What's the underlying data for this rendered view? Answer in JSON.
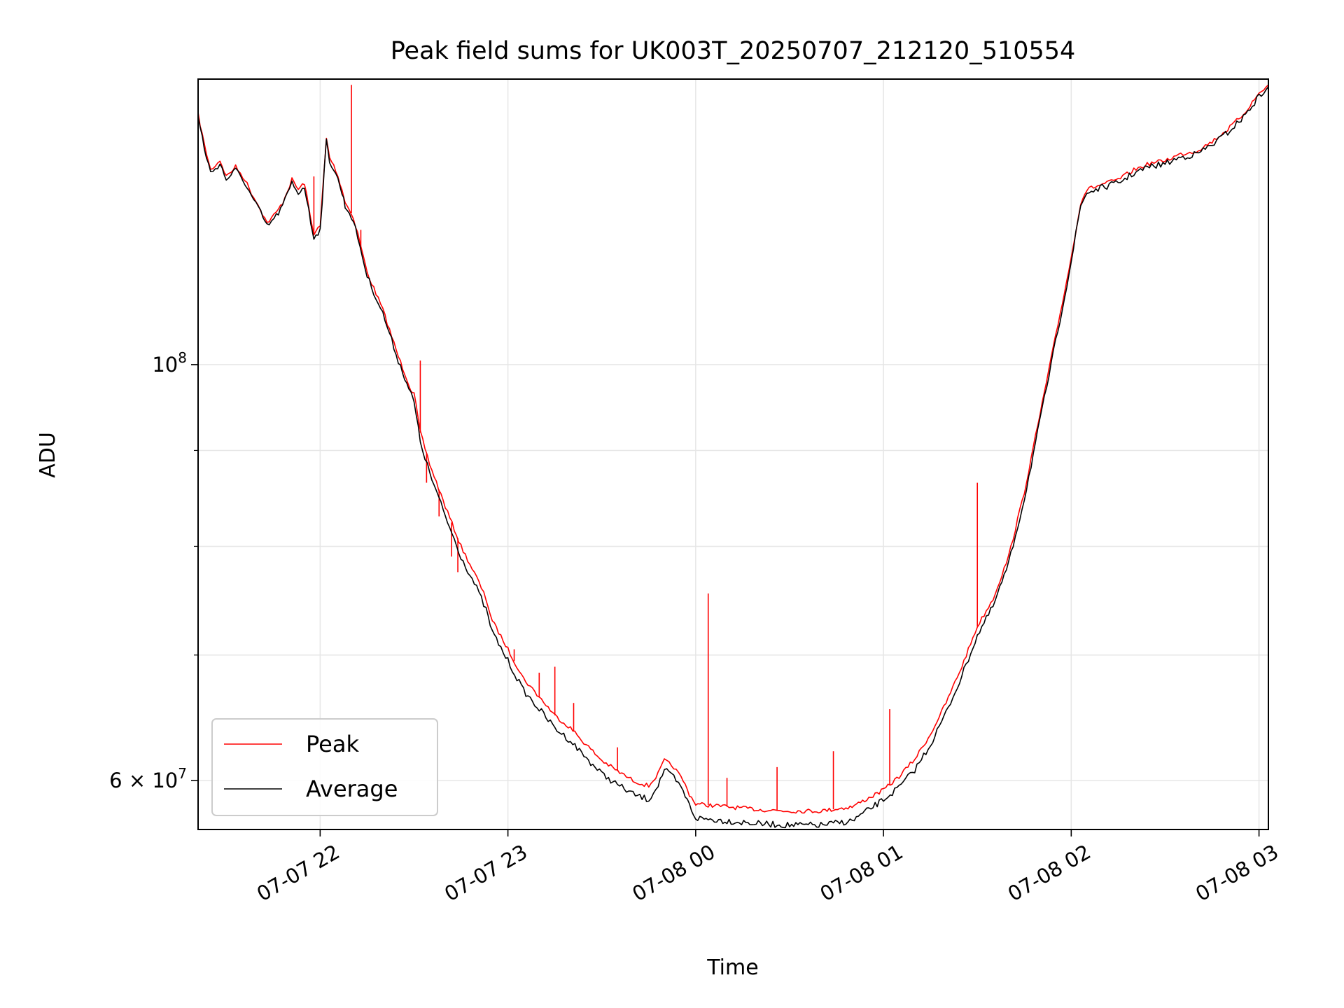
{
  "chart_data": {
    "type": "line",
    "title": "Peak field sums for UK003T_20250707_212120_510554",
    "xlabel": "Time",
    "ylabel": "ADU",
    "y_scale": "log",
    "grid": true,
    "legend_position": "lower-left",
    "xlim": [
      "2025-07-07T21:21",
      "2025-07-08T03:03"
    ],
    "ylim": [
      56500000,
      142000000
    ],
    "x_ticks": [
      {
        "value": "2025-07-07T22:00",
        "label": "07-07 22"
      },
      {
        "value": "2025-07-07T23:00",
        "label": "07-07 23"
      },
      {
        "value": "2025-07-08T00:00",
        "label": "07-08 00"
      },
      {
        "value": "2025-07-08T01:00",
        "label": "07-08 01"
      },
      {
        "value": "2025-07-08T02:00",
        "label": "07-08 02"
      },
      {
        "value": "2025-07-08T03:00",
        "label": "07-08 03"
      }
    ],
    "y_major_ticks": [
      {
        "value": 60000000,
        "base": "6",
        "times": "×",
        "pow": "10",
        "exp": "7"
      },
      {
        "value": 100000000,
        "base": "",
        "times": "",
        "pow": "10",
        "exp": "8"
      }
    ],
    "y_minor_ticks": [
      70000000,
      80000000,
      90000000
    ],
    "series": [
      {
        "name": "Peak",
        "color": "#ff0000",
        "x": [
          "2025-07-07T21:21",
          "2025-07-07T21:23",
          "2025-07-07T21:25",
          "2025-07-07T21:28",
          "2025-07-07T21:30",
          "2025-07-07T21:33",
          "2025-07-07T21:36",
          "2025-07-07T21:38",
          "2025-07-07T21:41",
          "2025-07-07T21:43",
          "2025-07-07T21:46",
          "2025-07-07T21:48",
          "2025-07-07T21:51",
          "2025-07-07T21:53",
          "2025-07-07T21:55",
          "2025-07-07T21:57",
          "2025-07-07T21:58",
          "2025-07-07T22:00",
          "2025-07-07T22:02",
          "2025-07-07T22:03",
          "2025-07-07T22:05",
          "2025-07-07T22:07",
          "2025-07-07T22:08",
          "2025-07-07T22:10",
          "2025-07-07T22:12",
          "2025-07-07T22:15",
          "2025-07-07T22:20",
          "2025-07-07T22:25",
          "2025-07-07T22:29",
          "2025-07-07T22:30",
          "2025-07-07T22:32",
          "2025-07-07T22:35",
          "2025-07-07T22:40",
          "2025-07-07T22:45",
          "2025-07-07T22:50",
          "2025-07-07T22:53",
          "2025-07-07T22:55",
          "2025-07-07T22:57",
          "2025-07-07T23:00",
          "2025-07-07T23:05",
          "2025-07-07T23:10",
          "2025-07-07T23:15",
          "2025-07-07T23:20",
          "2025-07-07T23:25",
          "2025-07-07T23:30",
          "2025-07-07T23:35",
          "2025-07-07T23:40",
          "2025-07-07T23:45",
          "2025-07-07T23:48",
          "2025-07-07T23:50",
          "2025-07-07T23:53",
          "2025-07-07T23:56",
          "2025-07-07T23:58",
          "2025-07-08T00:00",
          "2025-07-08T00:10",
          "2025-07-08T00:20",
          "2025-07-08T00:30",
          "2025-07-08T00:40",
          "2025-07-08T00:50",
          "2025-07-08T01:00",
          "2025-07-08T01:05",
          "2025-07-08T01:10",
          "2025-07-08T01:15",
          "2025-07-08T01:20",
          "2025-07-08T01:25",
          "2025-07-08T01:30",
          "2025-07-08T01:35",
          "2025-07-08T01:40",
          "2025-07-08T01:45",
          "2025-07-08T01:50",
          "2025-07-08T01:55",
          "2025-07-08T02:00",
          "2025-07-08T02:03",
          "2025-07-08T02:05",
          "2025-07-08T02:10",
          "2025-07-08T02:15",
          "2025-07-08T02:20",
          "2025-07-08T02:25",
          "2025-07-08T02:30",
          "2025-07-08T02:35",
          "2025-07-08T02:40",
          "2025-07-08T02:45",
          "2025-07-08T02:50",
          "2025-07-08T02:55",
          "2025-07-08T03:00",
          "2025-07-08T03:03"
        ],
        "y": [
          136000000,
          131000000,
          127000000,
          128500000,
          126000000,
          127500000,
          125500000,
          123500000,
          121000000,
          119000000,
          120500000,
          122000000,
          125500000,
          124000000,
          125000000,
          119500000,
          117500000,
          118500000,
          132000000,
          129000000,
          127000000,
          124000000,
          122000000,
          120500000,
          117500000,
          112000000,
          107000000,
          101000000,
          97000000,
          96500000,
          92000000,
          88500000,
          84000000,
          80000000,
          77000000,
          75000000,
          73000000,
          72000000,
          70500000,
          68000000,
          66500000,
          65000000,
          64000000,
          62700000,
          61500000,
          60700000,
          60000000,
          59600000,
          60500000,
          61500000,
          61000000,
          60000000,
          59000000,
          58300000,
          58100000,
          57900000,
          57800000,
          57800000,
          58100000,
          59300000,
          60300000,
          61600000,
          63500000,
          66000000,
          69000000,
          72500000,
          75000000,
          79000000,
          85500000,
          94000000,
          103500000,
          114000000,
          122000000,
          124000000,
          124800000,
          125500000,
          127000000,
          128000000,
          128500000,
          129500000,
          130000000,
          131500000,
          133500000,
          136000000,
          139500000,
          141000000
        ],
        "spikes": [
          {
            "x": "2025-07-07T21:58",
            "y": 126000000
          },
          {
            "x": "2025-07-07T22:10",
            "y": 141000000
          },
          {
            "x": "2025-07-07T22:13",
            "y": 118000000
          },
          {
            "x": "2025-07-07T22:32",
            "y": 100500000
          },
          {
            "x": "2025-07-07T22:34",
            "y": 86500000
          },
          {
            "x": "2025-07-07T22:38",
            "y": 83000000
          },
          {
            "x": "2025-07-07T22:42",
            "y": 79000000
          },
          {
            "x": "2025-07-07T22:44",
            "y": 77500000
          },
          {
            "x": "2025-07-07T23:02",
            "y": 70500000
          },
          {
            "x": "2025-07-07T23:10",
            "y": 68500000
          },
          {
            "x": "2025-07-07T23:15",
            "y": 69000000
          },
          {
            "x": "2025-07-07T23:21",
            "y": 66000000
          },
          {
            "x": "2025-07-07T23:35",
            "y": 62500000
          },
          {
            "x": "2025-07-08T00:04",
            "y": 75500000
          },
          {
            "x": "2025-07-08T00:10",
            "y": 60200000
          },
          {
            "x": "2025-07-08T00:26",
            "y": 61000000
          },
          {
            "x": "2025-07-08T00:44",
            "y": 62200000
          },
          {
            "x": "2025-07-08T01:02",
            "y": 65500000
          },
          {
            "x": "2025-07-08T01:30",
            "y": 86500000
          }
        ]
      },
      {
        "name": "Average",
        "color": "#000000",
        "x": [
          "2025-07-07T21:21",
          "2025-07-07T21:23",
          "2025-07-07T21:25",
          "2025-07-07T21:28",
          "2025-07-07T21:30",
          "2025-07-07T21:33",
          "2025-07-07T21:36",
          "2025-07-07T21:38",
          "2025-07-07T21:41",
          "2025-07-07T21:43",
          "2025-07-07T21:46",
          "2025-07-07T21:48",
          "2025-07-07T21:51",
          "2025-07-07T21:53",
          "2025-07-07T21:55",
          "2025-07-07T21:57",
          "2025-07-07T21:58",
          "2025-07-07T22:00",
          "2025-07-07T22:02",
          "2025-07-07T22:03",
          "2025-07-07T22:05",
          "2025-07-07T22:07",
          "2025-07-07T22:08",
          "2025-07-07T22:10",
          "2025-07-07T22:12",
          "2025-07-07T22:15",
          "2025-07-07T22:20",
          "2025-07-07T22:25",
          "2025-07-07T22:29",
          "2025-07-07T22:30",
          "2025-07-07T22:32",
          "2025-07-07T22:35",
          "2025-07-07T22:40",
          "2025-07-07T22:45",
          "2025-07-07T22:50",
          "2025-07-07T22:53",
          "2025-07-07T22:55",
          "2025-07-07T22:57",
          "2025-07-07T23:00",
          "2025-07-07T23:05",
          "2025-07-07T23:10",
          "2025-07-07T23:15",
          "2025-07-07T23:20",
          "2025-07-07T23:25",
          "2025-07-07T23:30",
          "2025-07-07T23:35",
          "2025-07-07T23:40",
          "2025-07-07T23:45",
          "2025-07-07T23:48",
          "2025-07-07T23:50",
          "2025-07-07T23:53",
          "2025-07-07T23:56",
          "2025-07-07T23:58",
          "2025-07-08T00:00",
          "2025-07-08T00:10",
          "2025-07-08T00:20",
          "2025-07-08T00:30",
          "2025-07-08T00:40",
          "2025-07-08T00:50",
          "2025-07-08T01:00",
          "2025-07-08T01:05",
          "2025-07-08T01:10",
          "2025-07-08T01:15",
          "2025-07-08T01:20",
          "2025-07-08T01:25",
          "2025-07-08T01:30",
          "2025-07-08T01:35",
          "2025-07-08T01:40",
          "2025-07-08T01:45",
          "2025-07-08T01:50",
          "2025-07-08T01:55",
          "2025-07-08T02:00",
          "2025-07-08T02:03",
          "2025-07-08T02:05",
          "2025-07-08T02:10",
          "2025-07-08T02:15",
          "2025-07-08T02:20",
          "2025-07-08T02:25",
          "2025-07-08T02:30",
          "2025-07-08T02:35",
          "2025-07-08T02:40",
          "2025-07-08T02:45",
          "2025-07-08T02:50",
          "2025-07-08T02:55",
          "2025-07-08T03:00",
          "2025-07-08T03:03"
        ],
        "y": [
          135500000,
          130500000,
          126500000,
          128000000,
          125500000,
          127000000,
          125000000,
          123000000,
          120500000,
          118500000,
          120000000,
          121500000,
          125000000,
          123500000,
          124500000,
          119000000,
          117000000,
          118000000,
          131500000,
          128500000,
          126500000,
          123500000,
          121500000,
          120000000,
          117000000,
          111500000,
          106500000,
          100500000,
          96500000,
          95500000,
          91000000,
          87500000,
          83000000,
          79000000,
          76000000,
          74000000,
          72000000,
          71000000,
          69500000,
          67000000,
          65500000,
          64000000,
          63000000,
          61700000,
          60500000,
          59700000,
          59000000,
          58600000,
          59700000,
          60800000,
          60200000,
          59200000,
          58200000,
          57300000,
          57100000,
          56900000,
          56800000,
          56800000,
          57100000,
          58600000,
          59500000,
          60800000,
          62700000,
          65200000,
          68200000,
          71700000,
          74300000,
          78300000,
          84800000,
          93300000,
          102800000,
          113500000,
          121500000,
          123500000,
          124300000,
          125000000,
          126500000,
          127500000,
          128000000,
          129000000,
          129500000,
          131000000,
          133000000,
          135500000,
          139000000,
          140700000
        ]
      }
    ]
  }
}
